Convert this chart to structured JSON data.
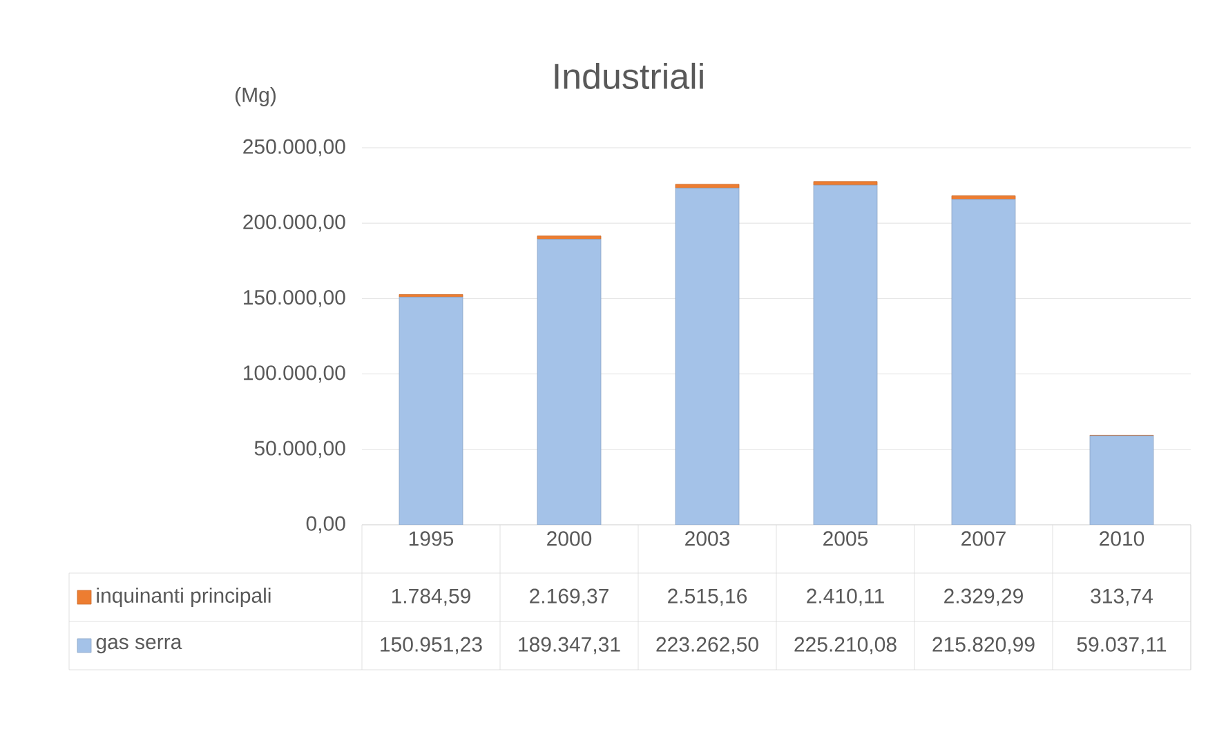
{
  "chart_data": {
    "type": "bar",
    "title": "Industriali",
    "ylabel": "(Mg)",
    "categories": [
      "1995",
      "2000",
      "2003",
      "2005",
      "2007",
      "2010"
    ],
    "stacked": true,
    "series": [
      {
        "name": "gas serra",
        "color": "#a4c2e8",
        "values": [
          150951.23,
          189347.31,
          223262.5,
          225210.08,
          215820.99,
          59037.11
        ],
        "value_labels": [
          "150.951,23",
          "189.347,31",
          "223.262,50",
          "225.210,08",
          "215.820,99",
          "59.037,11"
        ]
      },
      {
        "name": "inquinanti principali",
        "color": "#ed7d31",
        "values": [
          1784.59,
          2169.37,
          2515.16,
          2410.11,
          2329.29,
          313.74
        ],
        "value_labels": [
          "1.784,59",
          "2.169,37",
          "2.515,16",
          "2.410,11",
          "2.329,29",
          "313,74"
        ]
      }
    ],
    "ylim": [
      0,
      250000
    ],
    "yticks": [
      {
        "value": 0,
        "label": "0,00"
      },
      {
        "value": 50000,
        "label": "50.000,00"
      },
      {
        "value": 100000,
        "label": "100.000,00"
      },
      {
        "value": 150000,
        "label": "150.000,00"
      },
      {
        "value": 200000,
        "label": "200.000,00"
      },
      {
        "value": 250000,
        "label": "250.000,00"
      }
    ],
    "grid": "y",
    "legend": "bottom"
  }
}
